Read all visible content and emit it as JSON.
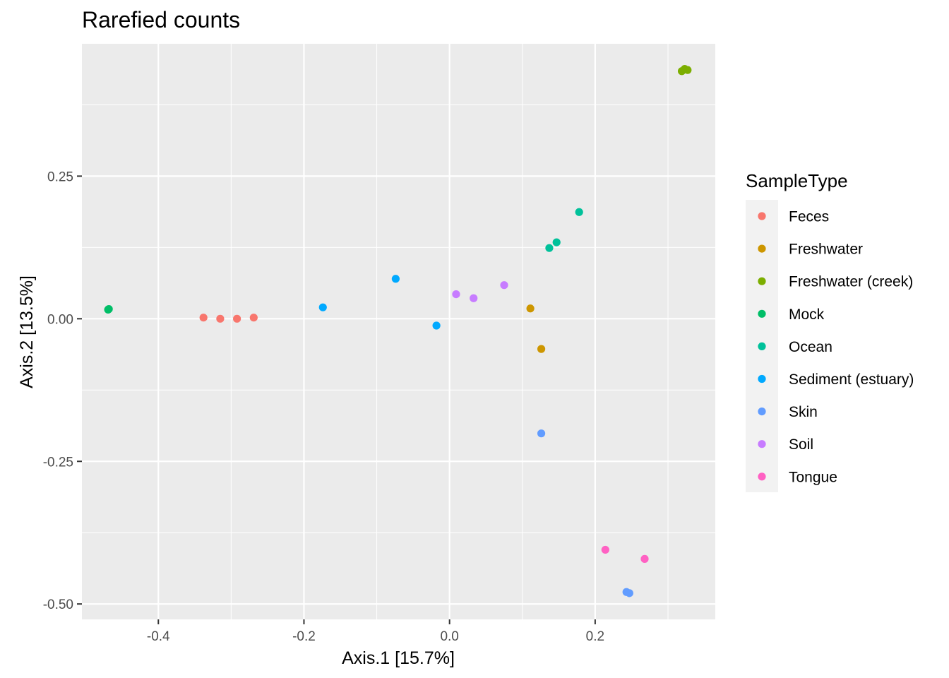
{
  "chart_data": {
    "type": "scatter",
    "title": "Rarefied counts",
    "xlabel": "Axis.1   [15.7%]",
    "ylabel": "Axis.2   [13.5%]",
    "xlim": [
      -0.505,
      0.365
    ],
    "ylim": [
      -0.527,
      0.482
    ],
    "x_ticks": [
      -0.4,
      -0.2,
      0.0,
      0.2
    ],
    "x_tick_labels": [
      "-0.4",
      "-0.2",
      "0.0",
      "0.2"
    ],
    "x_minor_ticks": [
      -0.3,
      -0.1,
      0.1,
      0.3
    ],
    "y_ticks": [
      -0.5,
      -0.25,
      0.0,
      0.25
    ],
    "y_tick_labels": [
      "-0.50",
      "-0.25",
      "0.00",
      "0.25"
    ],
    "y_minor_ticks": [
      -0.375,
      -0.125,
      0.125,
      0.375
    ],
    "grid": true,
    "legend": {
      "title": "SampleType",
      "position": "right"
    },
    "series": [
      {
        "name": "Feces",
        "color": "#F8766D",
        "points": [
          [
            -0.338,
            0.002
          ],
          [
            -0.315,
            0.0
          ],
          [
            -0.292,
            0.0
          ],
          [
            -0.269,
            0.002
          ]
        ]
      },
      {
        "name": "Freshwater",
        "color": "#CD9600",
        "points": [
          [
            0.111,
            0.018
          ],
          [
            0.126,
            -0.053
          ]
        ]
      },
      {
        "name": "Freshwater (creek)",
        "color": "#7CAE00",
        "points": [
          [
            0.319,
            0.434
          ],
          [
            0.323,
            0.438
          ],
          [
            0.327,
            0.436
          ]
        ]
      },
      {
        "name": "Mock",
        "color": "#00BE67",
        "points": [
          [
            -0.469,
            0.016
          ],
          [
            -0.468,
            0.017
          ]
        ]
      },
      {
        "name": "Ocean",
        "color": "#00C19A",
        "points": [
          [
            0.137,
            0.124
          ],
          [
            0.147,
            0.134
          ],
          [
            0.178,
            0.187
          ]
        ]
      },
      {
        "name": "Sediment (estuary)",
        "color": "#00A9FF",
        "points": [
          [
            -0.174,
            0.02
          ],
          [
            -0.074,
            0.07
          ],
          [
            -0.018,
            -0.012
          ]
        ]
      },
      {
        "name": "Skin",
        "color": "#619CFF",
        "points": [
          [
            0.126,
            -0.201
          ],
          [
            0.243,
            -0.479
          ],
          [
            0.247,
            -0.481
          ]
        ]
      },
      {
        "name": "Soil",
        "color": "#C77CFF",
        "points": [
          [
            0.009,
            0.043
          ],
          [
            0.033,
            0.036
          ],
          [
            0.075,
            0.059
          ]
        ]
      },
      {
        "name": "Tongue",
        "color": "#FF61C3",
        "points": [
          [
            0.214,
            -0.405
          ],
          [
            0.268,
            -0.421
          ]
        ]
      }
    ]
  }
}
